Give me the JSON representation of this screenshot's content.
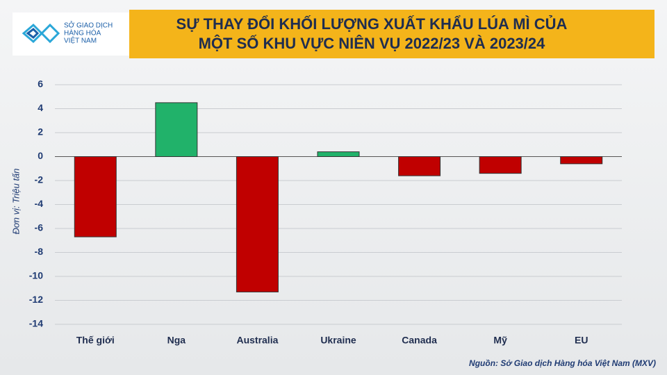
{
  "logo": {
    "lines": [
      "SỞ GIAO DỊCH",
      "HÀNG HÓA",
      "VIỆT NAM"
    ]
  },
  "chart_data": {
    "type": "bar",
    "title": [
      "SỰ THAY ĐỔI KHỐI LƯỢNG XUẤT KHẨU LÚA MÌ CỦA",
      "MỘT SỐ KHU VỰC NIÊN VỤ 2022/23 VÀ 2023/24"
    ],
    "y_label": "Đơn vị: Triệu tấn",
    "source": "Nguồn: Sở Giao dịch Hàng hóa Việt Nam (MXV)",
    "categories": [
      "Thế giới",
      "Nga",
      "Australia",
      "Ukraine",
      "Canada",
      "Mỹ",
      "EU"
    ],
    "values": [
      -6.7,
      4.5,
      -11.3,
      0.4,
      -1.6,
      -1.4,
      -0.6
    ],
    "positive_color": "#21b26a",
    "negative_color": "#c00000",
    "ylim": [
      -14,
      6
    ],
    "yticks": [
      -14,
      -12,
      -10,
      -8,
      -6,
      -4,
      -2,
      0,
      2,
      4,
      6
    ],
    "grid": true
  }
}
